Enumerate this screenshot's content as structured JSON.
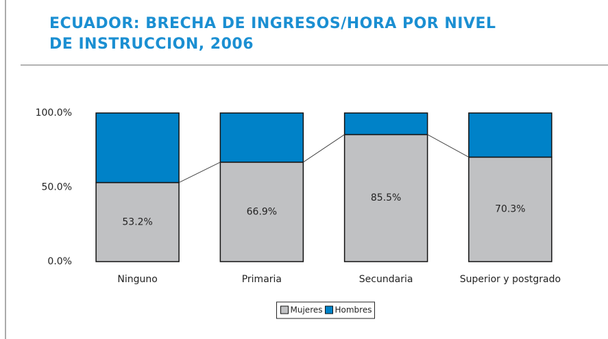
{
  "chart_data": {
    "type": "stacked_bar",
    "title": "ECUADOR: BRECHA DE INGRESOS/HORA POR NIVEL DE INSTRUCCION, 2006",
    "categories": [
      "Ninguno",
      "Primaria",
      "Secundaria",
      "Superior y postgrado"
    ],
    "series": [
      {
        "name": "Mujeres",
        "color": "#c0c1c3",
        "values": [
          53.2,
          66.9,
          85.5,
          70.3
        ],
        "value_labels": [
          "53.2%",
          "66.9%",
          "85.5%",
          "70.3%"
        ]
      },
      {
        "name": "Hombres",
        "color": "#0082c8",
        "values": [
          46.8,
          33.1,
          14.5,
          29.7
        ]
      }
    ],
    "ylim": [
      0,
      100
    ],
    "yticks": [
      {
        "value": 0,
        "label": "0.0%"
      },
      {
        "value": 50,
        "label": "50.0%"
      },
      {
        "value": 100,
        "label": "100.0%"
      }
    ],
    "legend": "bottom"
  }
}
